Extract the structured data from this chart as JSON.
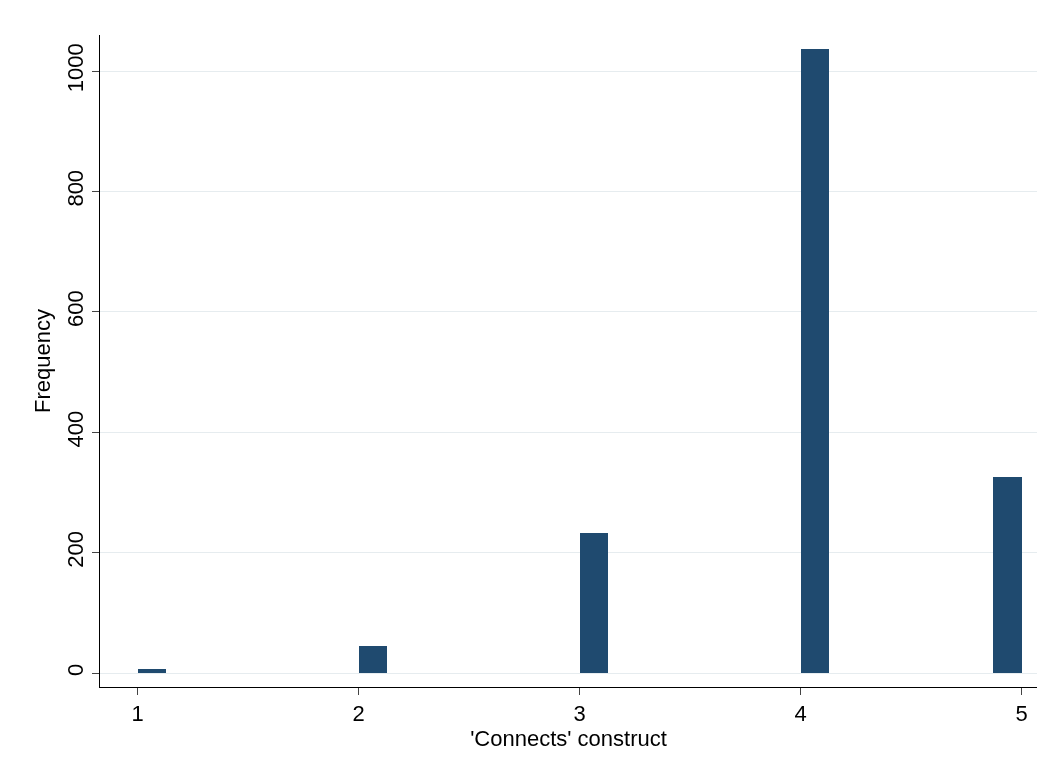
{
  "chart_data": {
    "type": "histogram",
    "xlabel": "'Connects' construct",
    "ylabel": "Frequency",
    "bins": [
      1,
      1.13,
      2,
      2.13,
      3,
      3.13,
      4,
      4.13,
      4.87,
      5
    ],
    "values": [
      7,
      0,
      45,
      0,
      232,
      0,
      1037,
      0,
      325
    ],
    "color": "#1f4a6f",
    "xlim": [
      0.83,
      5.07
    ],
    "xticks": [
      1,
      2,
      3,
      4,
      5
    ],
    "ylim": [
      -23,
      1060
    ],
    "yticks": [
      0,
      200,
      400,
      600,
      800,
      1000
    ],
    "grid": "y"
  }
}
